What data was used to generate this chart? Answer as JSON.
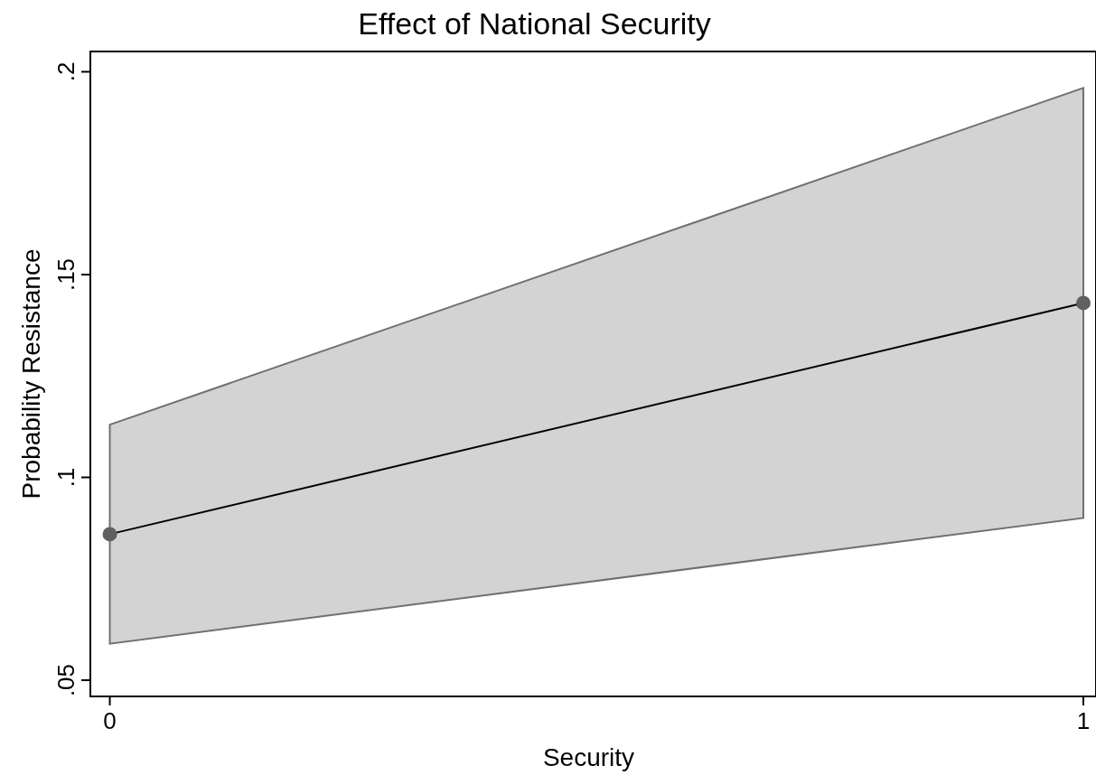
{
  "chart_data": {
    "type": "line",
    "title": "Effect of National Security",
    "xlabel": "Security",
    "ylabel": "Probability Resistance",
    "x": [
      0,
      1
    ],
    "series": [
      {
        "color": "#000000",
        "values": [
          0.086,
          0.143
        ],
        "lower": [
          0.059,
          0.09
        ],
        "upper": [
          0.113,
          0.196
        ]
      }
    ],
    "xlim": [
      -0.02,
      1.013
    ],
    "ylim": [
      0.046,
      0.205
    ],
    "xticks": [
      0,
      1
    ],
    "yticks": [
      {
        "value": 0.05,
        "label": ".05"
      },
      {
        "value": 0.1,
        "label": ".1"
      },
      {
        "value": 0.15,
        "label": ".15"
      },
      {
        "value": 0.2,
        "label": ".2"
      }
    ],
    "marker": "circle"
  }
}
